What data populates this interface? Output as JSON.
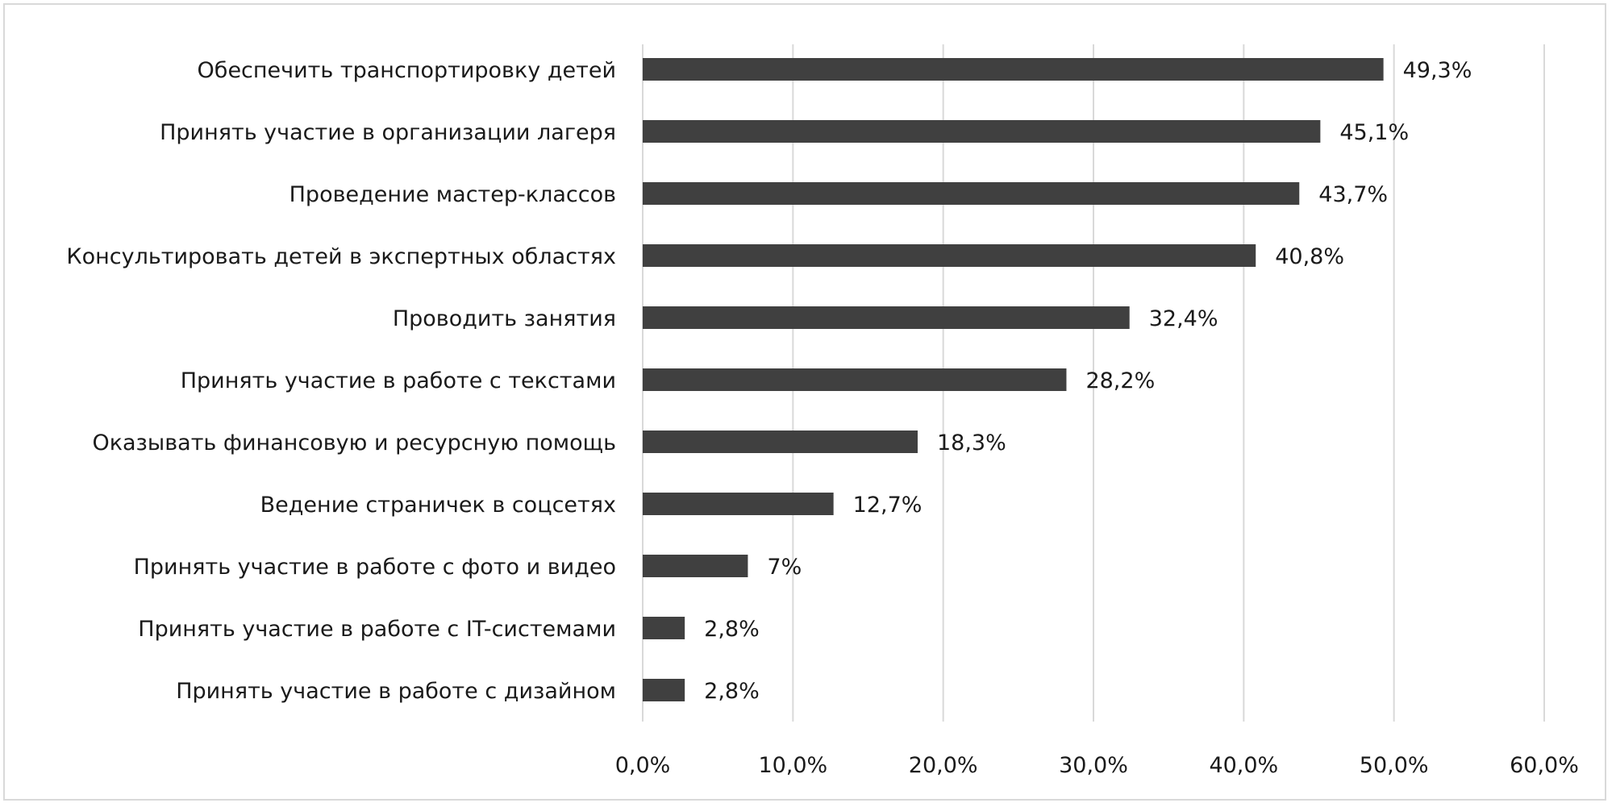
{
  "chart_data": {
    "type": "bar",
    "orientation": "horizontal",
    "title": "",
    "xlabel": "",
    "ylabel": "",
    "xlim": [
      0,
      60
    ],
    "x_ticks": [
      0,
      10,
      20,
      30,
      40,
      50,
      60
    ],
    "x_tick_labels": [
      "0,0%",
      "10,0%",
      "20,0%",
      "30,0%",
      "40,0%",
      "50,0%",
      "60,0%"
    ],
    "grid": "vertical",
    "legend": "none",
    "bar_color": "#404040",
    "grid_color": "#d9d9d9",
    "categories": [
      "Обеспечить транспортировку детей",
      "Принять участие в организации лагеря",
      "Проведение мастер-классов",
      "Консультировать детей в экспертных областях",
      "Проводить занятия",
      "Принять участие в работе с текстами",
      "Оказывать финансовую и ресурсную помощь",
      "Ведение страничек в соцсетях",
      "Принять участие в работе с фото и видео",
      "Принять участие в работе с IT-системами",
      "Принять участие в работе с дизайном"
    ],
    "values": [
      49.3,
      45.1,
      43.7,
      40.8,
      32.4,
      28.2,
      18.3,
      12.7,
      7,
      2.8,
      2.8
    ],
    "data_labels": [
      "49,3%",
      "45,1%",
      "43,7%",
      "40,8%",
      "32,4%",
      "28,2%",
      "18,3%",
      "12,7%",
      "7%",
      "2,8%",
      "2,8%"
    ]
  }
}
